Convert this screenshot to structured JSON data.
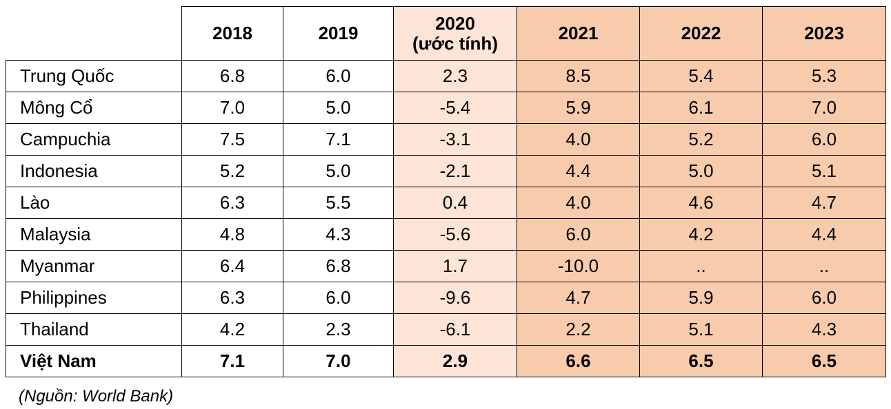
{
  "chart_data": {
    "type": "table",
    "columns": [
      "2018",
      "2019",
      "2020\n(ước tính)",
      "2021",
      "2022",
      "2023"
    ],
    "rows": [
      {
        "country": "Trung Quốc",
        "values": [
          "6.8",
          "6.0",
          "2.3",
          "8.5",
          "5.4",
          "5.3"
        ]
      },
      {
        "country": "Mông Cổ",
        "values": [
          "7.0",
          "5.0",
          "-5.4",
          "5.9",
          "6.1",
          "7.0"
        ]
      },
      {
        "country": "Campuchia",
        "values": [
          "7.5",
          "7.1",
          "-3.1",
          "4.0",
          "5.2",
          "6.0"
        ]
      },
      {
        "country": "Indonesia",
        "values": [
          "5.2",
          "5.0",
          "-2.1",
          "4.4",
          "5.0",
          "5.1"
        ]
      },
      {
        "country": "Lào",
        "values": [
          "6.3",
          "5.5",
          "0.4",
          "4.0",
          "4.6",
          "4.7"
        ]
      },
      {
        "country": "Malaysia",
        "values": [
          "4.8",
          "4.3",
          "-5.6",
          "6.0",
          "4.2",
          "4.4"
        ]
      },
      {
        "country": "Myanmar",
        "values": [
          "6.4",
          "6.8",
          "1.7",
          "-10.0",
          "..",
          ".."
        ]
      },
      {
        "country": "Philippines",
        "values": [
          "6.3",
          "6.0",
          "-9.6",
          "4.7",
          "5.9",
          "6.0"
        ]
      },
      {
        "country": "Thailand",
        "values": [
          "4.2",
          "2.3",
          "-6.1",
          "2.2",
          "5.1",
          "4.3"
        ]
      },
      {
        "country": "Việt Nam",
        "values": [
          "7.1",
          "7.0",
          "2.9",
          "6.6",
          "6.5",
          "6.5"
        ]
      }
    ],
    "source": "(Nguồn: World Bank)",
    "colors": {
      "estimate_column": "#fce4d6",
      "forecast_columns": "#f8cbad"
    }
  }
}
